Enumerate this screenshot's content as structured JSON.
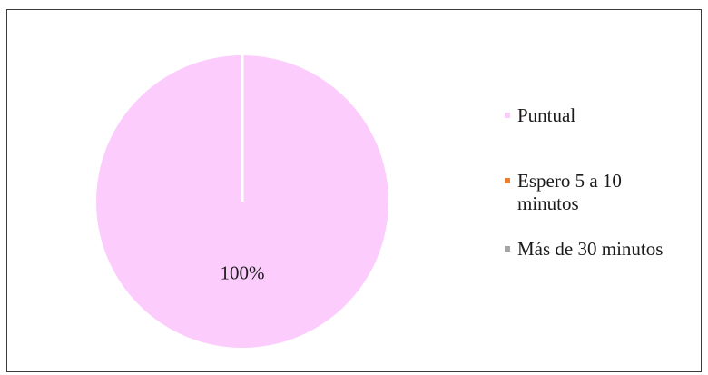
{
  "chart_data": {
    "type": "pie",
    "categories": [
      "Puntual",
      "Espero 5 a 10 minutos",
      "Más de 30 minutos"
    ],
    "values": [
      100,
      0,
      0
    ],
    "data_labels": [
      "100%",
      "",
      ""
    ],
    "colors": [
      "#fcccfc",
      "#ed7d31",
      "#a5a5a5"
    ],
    "legend_position": "right",
    "title": ""
  }
}
